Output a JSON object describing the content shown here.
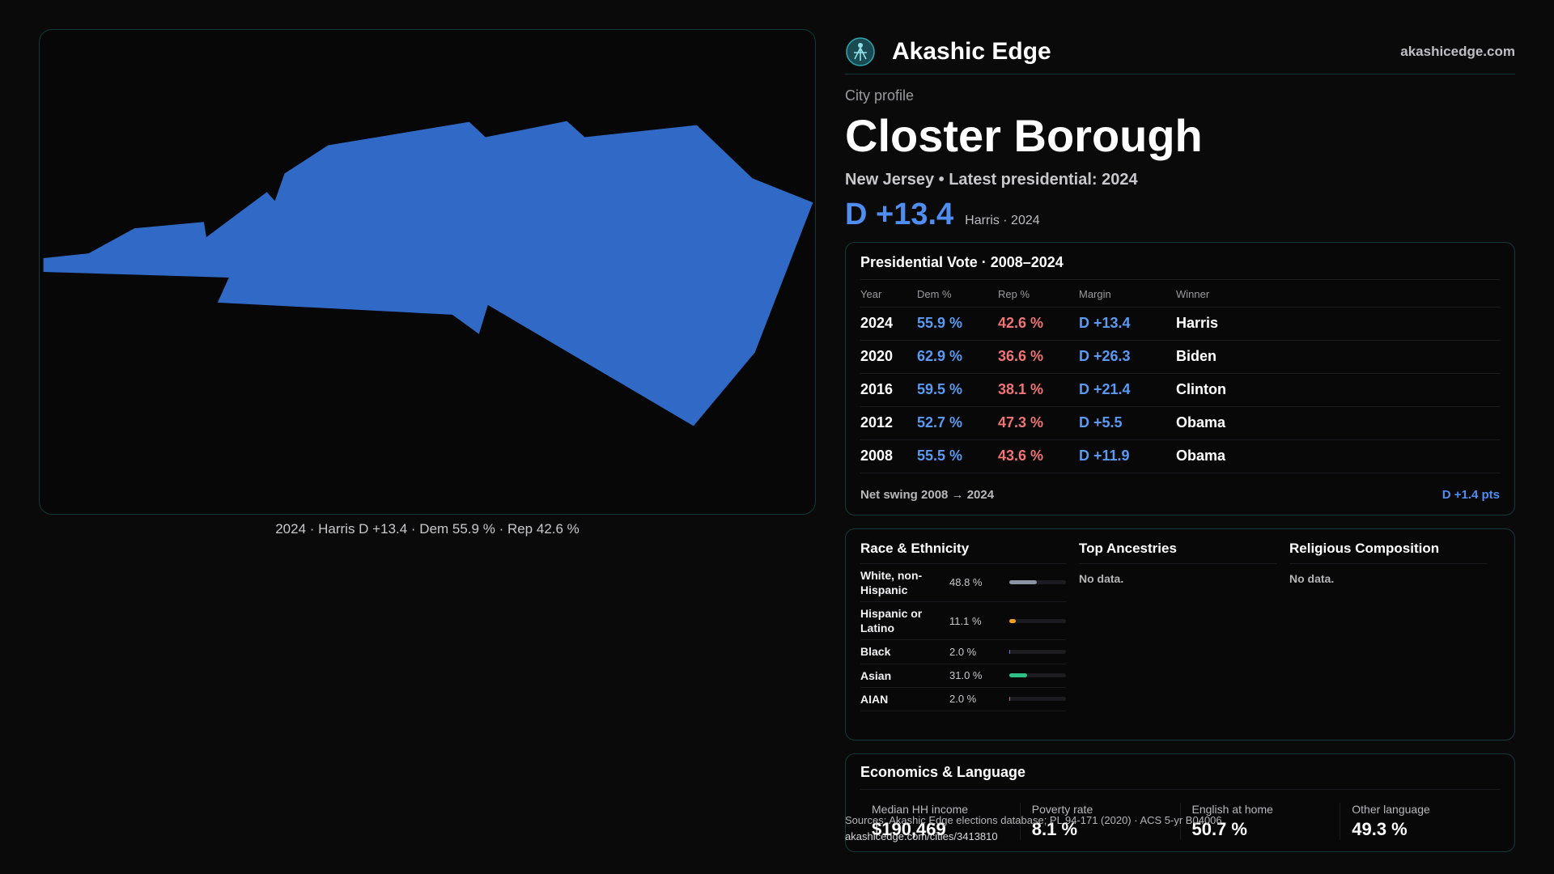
{
  "brand": {
    "name": "Akashic Edge",
    "site": "akashicedge.com"
  },
  "profile": {
    "kicker": "City profile",
    "city": "Closter Borough",
    "subline": "New Jersey • Latest presidential: 2024",
    "margin": "D +13.4",
    "margin_note": "Harris · 2024"
  },
  "map": {
    "caption": "2024 · Harris D +13.4 · Dem 55.9 % · Rep 42.6 %",
    "fill_color": "#316ac6"
  },
  "votes": {
    "title": "Presidential Vote · 2008–2024",
    "headers": {
      "year": "Year",
      "dem": "Dem %",
      "rep": "Rep %",
      "margin": "Margin",
      "winner": "Winner"
    },
    "rows": [
      {
        "year": "2024",
        "dem": "55.9 %",
        "rep": "42.6 %",
        "margin": "D +13.4",
        "winner": "Harris"
      },
      {
        "year": "2020",
        "dem": "62.9 %",
        "rep": "36.6 %",
        "margin": "D +26.3",
        "winner": "Biden"
      },
      {
        "year": "2016",
        "dem": "59.5 %",
        "rep": "38.1 %",
        "margin": "D +21.4",
        "winner": "Clinton"
      },
      {
        "year": "2012",
        "dem": "52.7 %",
        "rep": "47.3 %",
        "margin": "D +5.5",
        "winner": "Obama"
      },
      {
        "year": "2008",
        "dem": "55.5 %",
        "rep": "43.6 %",
        "margin": "D +11.9",
        "winner": "Obama"
      }
    ],
    "net_label": "Net swing 2008 → 2024",
    "net_value": "D +1.4 pts"
  },
  "race": {
    "title": "Race & Ethnicity",
    "rows": [
      {
        "name": "White, non-Hispanic",
        "pct": "48.8 %",
        "value": 48.8,
        "color": "#8a93a3"
      },
      {
        "name": "Hispanic or Latino",
        "pct": "11.1 %",
        "value": 11.1,
        "color": "#f0a020"
      },
      {
        "name": "Black",
        "pct": "2.0 %",
        "value": 2.0,
        "color": "#6b6ff0"
      },
      {
        "name": "Asian",
        "pct": "31.0 %",
        "value": 31.0,
        "color": "#2fc08a"
      },
      {
        "name": "AIAN",
        "pct": "2.0 %",
        "value": 2.0,
        "color": "#c07a3a"
      }
    ]
  },
  "ancestries": {
    "title": "Top Ancestries",
    "empty": "No data."
  },
  "religion": {
    "title": "Religious Composition",
    "empty": "No data."
  },
  "economics": {
    "title": "Economics & Language",
    "cells": [
      {
        "label": "Median HH income",
        "value": "$190,469"
      },
      {
        "label": "Poverty rate",
        "value": "8.1 %"
      },
      {
        "label": "English at home",
        "value": "50.7 %"
      },
      {
        "label": "Other language",
        "value": "49.3 %"
      }
    ]
  },
  "source": {
    "text": "Sources: Akashic Edge elections database; PL 94-171 (2020) · ACS 5-yr B04006",
    "url": "akashicedge.com/cities/3413810"
  }
}
